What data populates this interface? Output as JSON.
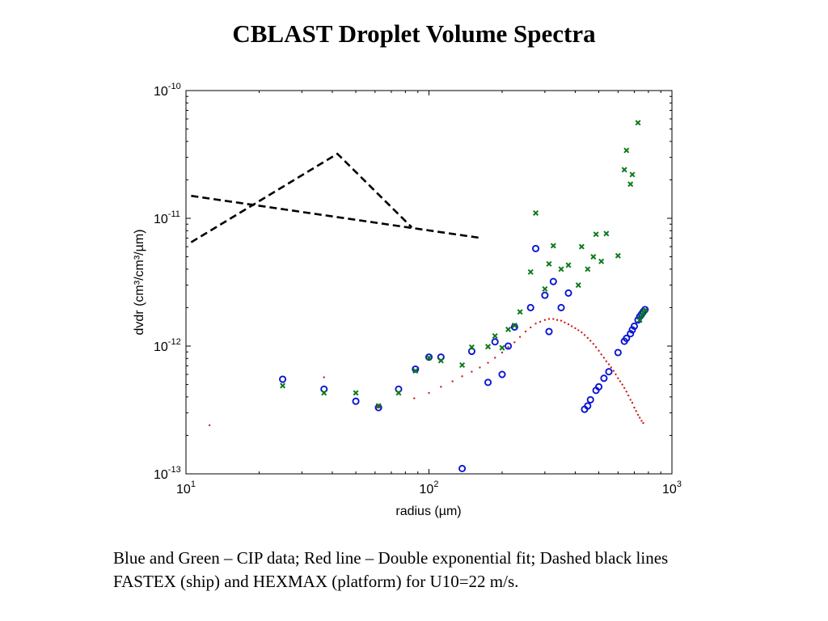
{
  "page": {
    "title": "CBLAST Droplet Volume Spectra",
    "caption": "Blue and Green – CIP data; Red line – Double exponential fit; Dashed black lines FASTEX (ship) and HEXMAX (platform) for U10=22 m/s."
  },
  "chart_data": {
    "type": "scatter",
    "title": "",
    "xlabel": "radius (µm)",
    "ylabel": "dvdr (cm³/cm³/µm)",
    "x_scale": "log",
    "y_scale": "log",
    "xlim": [
      10,
      1000
    ],
    "ylim": [
      1e-13,
      1e-10
    ],
    "x_ticks": [
      10,
      100,
      1000
    ],
    "x_tick_labels": [
      {
        "base": "10",
        "exp": "1"
      },
      {
        "base": "10",
        "exp": "2"
      },
      {
        "base": "10",
        "exp": "3"
      }
    ],
    "y_ticks": [
      1e-13,
      1e-12,
      1e-11,
      1e-10
    ],
    "y_tick_labels": [
      {
        "base": "10",
        "exp": "-13"
      },
      {
        "base": "10",
        "exp": "-12"
      },
      {
        "base": "10",
        "exp": "-11"
      },
      {
        "base": "10",
        "exp": "-10"
      }
    ],
    "grid": false,
    "colors": {
      "blue": "#0a14d2",
      "green": "#0f7a1a",
      "red": "#cc1f1f",
      "black": "#000000"
    },
    "series": [
      {
        "marker": "o",
        "color": "#0a14d2",
        "points": [
          [
            25,
            5.5e-13
          ],
          [
            37,
            4.6e-13
          ],
          [
            50,
            3.7e-13
          ],
          [
            62,
            3.3e-13
          ],
          [
            75,
            4.6e-13
          ],
          [
            88,
            6.6e-13
          ],
          [
            100,
            8.2e-13
          ],
          [
            112,
            8.2e-13
          ],
          [
            137,
            1.1e-13
          ],
          [
            150,
            9.1e-13
          ],
          [
            175,
            5.2e-13
          ],
          [
            187,
            1.08e-12
          ],
          [
            200,
            6e-13
          ],
          [
            212,
            1e-12
          ],
          [
            225,
            1.41e-12
          ],
          [
            262,
            2e-12
          ],
          [
            275,
            5.8e-12
          ],
          [
            300,
            2.5e-12
          ],
          [
            312,
            1.3e-12
          ],
          [
            325,
            3.2e-12
          ],
          [
            350,
            2e-12
          ],
          [
            375,
            2.6e-12
          ],
          [
            437,
            3.2e-13
          ],
          [
            450,
            3.4e-13
          ],
          [
            462,
            3.8e-13
          ],
          [
            487,
            4.5e-13
          ],
          [
            500,
            4.8e-13
          ],
          [
            525,
            5.6e-13
          ],
          [
            550,
            6.3e-13
          ],
          [
            600,
            8.9e-13
          ],
          [
            637,
            1.09e-12
          ],
          [
            650,
            1.15e-12
          ],
          [
            675,
            1.25e-12
          ],
          [
            687,
            1.34e-12
          ],
          [
            700,
            1.43e-12
          ],
          [
            725,
            1.6e-12
          ],
          [
            737,
            1.7e-12
          ],
          [
            750,
            1.78e-12
          ],
          [
            762,
            1.86e-12
          ],
          [
            775,
            1.93e-12
          ]
        ]
      },
      {
        "marker": "x",
        "color": "#0f7a1a",
        "points": [
          [
            25,
            4.9e-13
          ],
          [
            37,
            4.3e-13
          ],
          [
            50,
            4.3e-13
          ],
          [
            62,
            3.4e-13
          ],
          [
            75,
            4.3e-13
          ],
          [
            88,
            6.4e-13
          ],
          [
            100,
            8.1e-13
          ],
          [
            112,
            7.7e-13
          ],
          [
            137,
            7.1e-13
          ],
          [
            150,
            9.8e-13
          ],
          [
            175,
            9.9e-13
          ],
          [
            187,
            1.2e-12
          ],
          [
            200,
            9.7e-13
          ],
          [
            212,
            1.35e-12
          ],
          [
            225,
            1.45e-12
          ],
          [
            237,
            1.85e-12
          ],
          [
            262,
            3.8e-12
          ],
          [
            275,
            1.1e-11
          ],
          [
            300,
            2.8e-12
          ],
          [
            312,
            4.4e-12
          ],
          [
            325,
            6.1e-12
          ],
          [
            350,
            4e-12
          ],
          [
            375,
            4.3e-12
          ],
          [
            412,
            3e-12
          ],
          [
            425,
            6e-12
          ],
          [
            450,
            4e-12
          ],
          [
            475,
            5e-12
          ],
          [
            487,
            7.5e-12
          ],
          [
            512,
            4.6e-12
          ],
          [
            537,
            7.6e-12
          ],
          [
            600,
            5.1e-12
          ],
          [
            637,
            2.4e-11
          ],
          [
            650,
            3.4e-11
          ],
          [
            675,
            1.85e-11
          ],
          [
            687,
            2.2e-11
          ],
          [
            725,
            5.6e-11
          ],
          [
            737,
            1.6e-12
          ],
          [
            750,
            1.74e-12
          ],
          [
            762,
            1.82e-12
          ],
          [
            775,
            1.9e-12
          ]
        ]
      },
      {
        "marker": "dot",
        "color": "#cc1f1f",
        "points": [
          [
            12.5,
            2.4e-13
          ],
          [
            37,
            5.7e-13
          ],
          [
            62,
            3.3e-13
          ],
          [
            87,
            3.9e-13
          ],
          [
            100,
            4.3e-13
          ],
          [
            112,
            4.8e-13
          ],
          [
            125,
            5.3e-13
          ],
          [
            137,
            5.8e-13
          ],
          [
            150,
            6.3e-13
          ],
          [
            162,
            6.8e-13
          ],
          [
            175,
            7.4e-13
          ],
          [
            187,
            8.1e-13
          ],
          [
            200,
            8.9e-13
          ],
          [
            212,
            9.8e-13
          ],
          [
            225,
            1.07e-12
          ],
          [
            237,
            1.18e-12
          ],
          [
            250,
            1.3e-12
          ],
          [
            262,
            1.4e-12
          ],
          [
            275,
            1.5e-12
          ],
          [
            287,
            1.55e-12
          ],
          [
            300,
            1.6e-12
          ],
          [
            312,
            1.63e-12
          ],
          [
            325,
            1.63e-12
          ],
          [
            337,
            1.6e-12
          ],
          [
            350,
            1.58e-12
          ],
          [
            362,
            1.53e-12
          ],
          [
            375,
            1.48e-12
          ],
          [
            387,
            1.43e-12
          ],
          [
            400,
            1.38e-12
          ],
          [
            412,
            1.33e-12
          ],
          [
            425,
            1.28e-12
          ],
          [
            437,
            1.22e-12
          ],
          [
            450,
            1.16e-12
          ],
          [
            462,
            1.1e-12
          ],
          [
            475,
            1.04e-12
          ],
          [
            487,
            9.8e-13
          ],
          [
            500,
            9.2e-13
          ],
          [
            512,
            8.6e-13
          ],
          [
            525,
            8.1e-13
          ],
          [
            537,
            7.6e-13
          ],
          [
            550,
            7.2e-13
          ],
          [
            562,
            6.8e-13
          ],
          [
            575,
            6.4e-13
          ],
          [
            587,
            6e-13
          ],
          [
            600,
            5.6e-13
          ],
          [
            612,
            5.3e-13
          ],
          [
            625,
            5e-13
          ],
          [
            637,
            4.7e-13
          ],
          [
            650,
            4.4e-13
          ],
          [
            662,
            4.1e-13
          ],
          [
            675,
            3.8e-13
          ],
          [
            687,
            3.6e-13
          ],
          [
            700,
            3.3e-13
          ],
          [
            712,
            3.1e-13
          ],
          [
            725,
            2.9e-13
          ],
          [
            737,
            2.75e-13
          ],
          [
            750,
            2.6e-13
          ],
          [
            762,
            2.5e-13
          ]
        ]
      },
      {
        "marker": "dashed-line",
        "color": "#000000",
        "points": [
          [
            10.5,
            6.5e-12
          ],
          [
            42,
            3.2e-11
          ],
          [
            85,
            8.5e-12
          ]
        ]
      },
      {
        "marker": "dashed-line",
        "color": "#000000",
        "points": [
          [
            10.5,
            1.5e-11
          ],
          [
            165,
            7e-12
          ]
        ]
      }
    ]
  }
}
